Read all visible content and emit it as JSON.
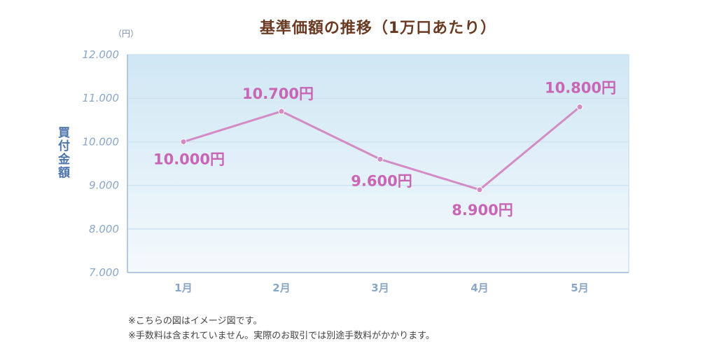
{
  "title": "基準価額の推移（1万口あたり）",
  "unit_label": "（円）",
  "notes": [
    "※こちらの図はイメージ図です。",
    "※手数料は含まれていません。実際のお取引では別途手数料がかかります。"
  ],
  "chart_data": {
    "type": "line",
    "title": "基準価額の推移（1万口あたり）",
    "xlabel": "",
    "ylabel": "買付金額",
    "categories": [
      "1月",
      "2月",
      "3月",
      "4月",
      "5月"
    ],
    "series": [
      {
        "values": [
          10000,
          10700,
          9600,
          8900,
          10800
        ],
        "data_labels": [
          "10.000円",
          "10.700円",
          "9.600円",
          "8.900円",
          "10.800円"
        ]
      }
    ],
    "ylim": [
      7000,
      12000
    ],
    "yticks": [
      {
        "value": 12000,
        "label": "12.000"
      },
      {
        "value": 11000,
        "label": "11.000"
      },
      {
        "value": 10000,
        "label": "10.000"
      },
      {
        "value": 9000,
        "label": "9.000"
      },
      {
        "value": 8000,
        "label": "8.000"
      },
      {
        "value": 7000,
        "label": "7.000"
      }
    ],
    "grid": true,
    "colors": {
      "line": "#d48ac4",
      "marker": "#d48ac4",
      "label": "#c865b5",
      "axis": "#8aa6c7",
      "grid": "#cfe2ef"
    }
  }
}
